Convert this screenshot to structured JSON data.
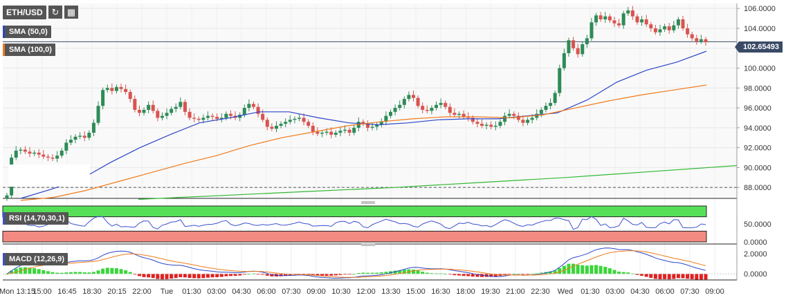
{
  "symbol": "ETH/USD",
  "icons": [
    "refresh-icon",
    "calendar-icon"
  ],
  "indicators": {
    "sma50": {
      "label": "SMA (50,0)",
      "color": "#2b45c9"
    },
    "sma100": {
      "label": "SMA (100,0)",
      "color": "#f07a18"
    },
    "rsi": {
      "label": "RSI (14,70,30,1)"
    },
    "macd": {
      "label": "MACD (12,26,9)"
    }
  },
  "current_price": "102.65493",
  "colors": {
    "up": "#2e8b57",
    "down": "#d9534f",
    "sma50": "#2b45c9",
    "sma100": "#f07a18",
    "sma200": "#2fb82f",
    "rsi_over": "#57e057",
    "rsi_under": "#f28a82",
    "macd_pos": "#39d639",
    "macd_neg": "#e02020"
  },
  "chart_data": {
    "type": "candlestick",
    "x_ticks": [
      "Mon 13:15",
      "15:00",
      "16:45",
      "18:30",
      "20:15",
      "22:00",
      "Tue",
      "01:30",
      "03:00",
      "04:30",
      "06:00",
      "07:30",
      "09:00",
      "10:30",
      "12:00",
      "13:30",
      "15:00",
      "16:30",
      "18:00",
      "19:30",
      "21:00",
      "22:30",
      "Wed",
      "01:30",
      "03:00",
      "04:30",
      "06:00",
      "07:30",
      "09:00"
    ],
    "price": {
      "y_ticks": [
        "106.0000",
        "104.0000",
        "102.0000",
        "100.0000",
        "98.0000",
        "96.0000",
        "94.0000",
        "92.0000",
        "90.0000",
        "88.0000"
      ],
      "ylim": [
        86.9,
        106.5
      ],
      "close": [
        87.2,
        91.0,
        91.7,
        91.8,
        91.6,
        91.4,
        91.5,
        91.3,
        91.1,
        91.0,
        90.9,
        91.2,
        91.7,
        92.5,
        92.8,
        93.1,
        93.2,
        93.0,
        93.5,
        94.5,
        96.2,
        97.8,
        98.0,
        97.7,
        98.1,
        97.9,
        97.6,
        96.9,
        95.8,
        95.5,
        95.8,
        96.3,
        95.7,
        95.0,
        95.2,
        95.5,
        95.9,
        96.1,
        96.6,
        95.6,
        95.0,
        94.9,
        94.8,
        95.0,
        95.2,
        95.1,
        94.9,
        95.0,
        95.4,
        95.2,
        95.0,
        95.3,
        96.0,
        96.4,
        96.1,
        95.4,
        94.8,
        94.1,
        93.9,
        94.2,
        94.4,
        94.6,
        94.8,
        94.9,
        95.0,
        94.6,
        94.2,
        93.6,
        93.4,
        93.5,
        93.6,
        93.3,
        93.5,
        93.7,
        93.8,
        93.5,
        94.0,
        94.6,
        94.4,
        94.0,
        94.1,
        94.3,
        94.6,
        95.2,
        95.6,
        96.0,
        96.3,
        96.9,
        97.3,
        97.0,
        96.2,
        95.8,
        95.7,
        96.0,
        96.3,
        96.5,
        96.1,
        95.5,
        95.3,
        95.4,
        95.1,
        95.0,
        94.6,
        94.4,
        94.2,
        94.3,
        94.1,
        94.2,
        94.6,
        95.2,
        95.4,
        95.2,
        94.8,
        94.5,
        94.8,
        95.0,
        95.4,
        95.8,
        96.2,
        96.5,
        97.5,
        100.0,
        101.5,
        102.8,
        102.0,
        101.4,
        102.4,
        103.0,
        104.6,
        105.3,
        104.9,
        105.2,
        104.8,
        104.5,
        104.3,
        105.5,
        105.8,
        105.2,
        104.6,
        104.9,
        104.4,
        104.0,
        103.6,
        103.9,
        104.2,
        103.8,
        104.3,
        104.9,
        104.0,
        103.4,
        103.0,
        102.7,
        102.9,
        102.6
      ],
      "sma50": [
        86.9,
        87.8,
        88.8,
        90.5,
        92.0,
        93.3,
        94.5,
        95.0,
        95.6,
        95.6,
        95.0,
        94.5,
        94.3,
        94.5,
        94.8,
        94.9,
        94.9,
        95.2,
        95.5,
        96.8,
        98.6,
        99.8,
        100.6,
        101.7
      ],
      "sma100": [
        86.7,
        87.0,
        87.7,
        88.6,
        89.5,
        90.4,
        91.2,
        92.2,
        93.0,
        93.6,
        94.2,
        94.6,
        94.9,
        95.1,
        95.1,
        95.0,
        95.3,
        96.0,
        96.7,
        97.3,
        97.8,
        98.3
      ],
      "sma200": [
        86.8,
        87.2,
        87.6,
        88.0,
        88.5,
        89.0,
        89.6,
        90.2
      ]
    },
    "rsi": {
      "y_ticks": [
        "50.0000",
        "0.0000"
      ],
      "ylim": [
        0,
        100
      ],
      "overbought": 70,
      "oversold": 30
    },
    "macd": {
      "y_ticks": [
        "2.0000",
        "0.0000"
      ],
      "ylim": [
        -0.6,
        2.6
      ]
    }
  }
}
